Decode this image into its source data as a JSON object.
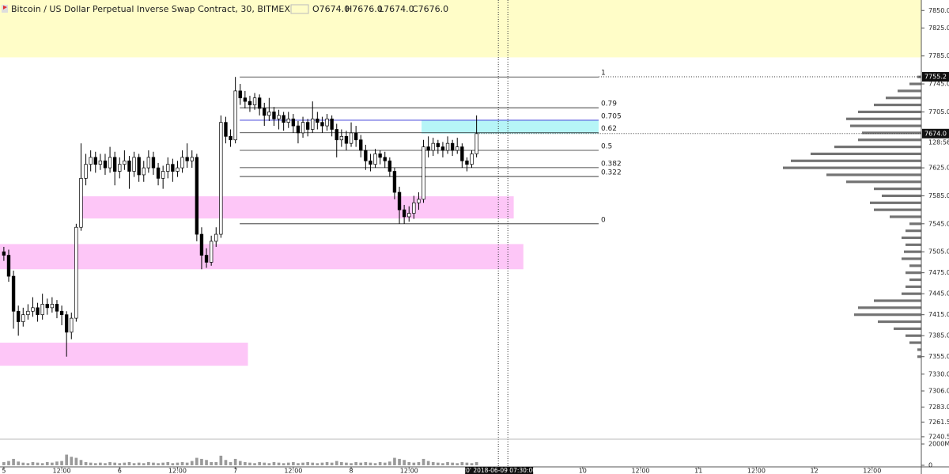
{
  "chart_data": {
    "type": "candlestick",
    "title": "Bitcoin / US Dollar Perpetual Inverse Swap Contract, 30, BITMEX",
    "legend_values": [
      "O7674.0",
      "H7676.0",
      "L7674.0",
      "C7676.0"
    ],
    "x": [
      0,
      1,
      2,
      3,
      4,
      5,
      6,
      7,
      8,
      9,
      10,
      11,
      12,
      13,
      14,
      15,
      16,
      17,
      18,
      19,
      20,
      21,
      22,
      23,
      24,
      25,
      26,
      27,
      28,
      29,
      30,
      31,
      32,
      33,
      34,
      35,
      36,
      37,
      38,
      39,
      40,
      41,
      42,
      43,
      44,
      45,
      46,
      47,
      48,
      49,
      50,
      51,
      52,
      53,
      54,
      55,
      56,
      57,
      58,
      59,
      60,
      61,
      62,
      63,
      64,
      65,
      66,
      67,
      68,
      69,
      70,
      71,
      72,
      73,
      74,
      75,
      76,
      77,
      78,
      79,
      80,
      81,
      82,
      83,
      84,
      85,
      86,
      87,
      88,
      89,
      90,
      91,
      92,
      93,
      94,
      95,
      96,
      97,
      98
    ],
    "open": [
      7505,
      7500,
      7470,
      7420,
      7405,
      7415,
      7420,
      7425,
      7415,
      7430,
      7425,
      7430,
      7420,
      7415,
      7390,
      7410,
      7540,
      7610,
      7630,
      7640,
      7630,
      7635,
      7625,
      7640,
      7620,
      7630,
      7635,
      7620,
      7640,
      7615,
      7625,
      7640,
      7625,
      7610,
      7620,
      7630,
      7620,
      7625,
      7640,
      7635,
      7640,
      7530,
      7500,
      7490,
      7520,
      7530,
      7690,
      7670,
      7665,
      7735,
      7725,
      7720,
      7715,
      7725,
      7710,
      7700,
      7705,
      7695,
      7700,
      7690,
      7695,
      7685,
      7675,
      7690,
      7680,
      7695,
      7690,
      7685,
      7695,
      7680,
      7665,
      7670,
      7660,
      7675,
      7665,
      7650,
      7635,
      7630,
      7645,
      7640,
      7635,
      7620,
      7590,
      7565,
      7555,
      7560,
      7575,
      7580,
      7655,
      7650,
      7660,
      7655,
      7650,
      7660,
      7650,
      7655,
      7635,
      7630,
      7645
    ],
    "high": [
      7512,
      7508,
      7478,
      7428,
      7425,
      7430,
      7440,
      7432,
      7445,
      7438,
      7440,
      7436,
      7428,
      7420,
      7418,
      7545,
      7660,
      7645,
      7650,
      7648,
      7645,
      7645,
      7655,
      7648,
      7640,
      7650,
      7642,
      7648,
      7645,
      7635,
      7650,
      7648,
      7632,
      7628,
      7640,
      7638,
      7635,
      7650,
      7660,
      7650,
      7645,
      7540,
      7510,
      7528,
      7540,
      7700,
      7698,
      7680,
      7755,
      7745,
      7735,
      7728,
      7732,
      7730,
      7718,
      7725,
      7712,
      7708,
      7705,
      7705,
      7702,
      7692,
      7698,
      7695,
      7720,
      7705,
      7698,
      7702,
      7700,
      7688,
      7680,
      7678,
      7690,
      7685,
      7672,
      7658,
      7645,
      7652,
      7650,
      7648,
      7640,
      7625,
      7598,
      7572,
      7570,
      7585,
      7590,
      7665,
      7670,
      7668,
      7665,
      7662,
      7670,
      7665,
      7668,
      7660,
      7640,
      7650,
      7700
    ],
    "low": [
      7492,
      7462,
      7395,
      7385,
      7398,
      7408,
      7412,
      7405,
      7408,
      7415,
      7418,
      7410,
      7400,
      7355,
      7380,
      7405,
      7535,
      7600,
      7620,
      7618,
      7622,
      7615,
      7618,
      7600,
      7610,
      7622,
      7595,
      7612,
      7605,
      7605,
      7618,
      7615,
      7600,
      7595,
      7610,
      7605,
      7612,
      7618,
      7625,
      7625,
      7520,
      7480,
      7482,
      7485,
      7512,
      7525,
      7660,
      7655,
      7660,
      7715,
      7710,
      7705,
      7708,
      7700,
      7685,
      7692,
      7685,
      7680,
      7678,
      7682,
      7675,
      7660,
      7668,
      7670,
      7675,
      7680,
      7675,
      7678,
      7670,
      7640,
      7655,
      7650,
      7655,
      7655,
      7640,
      7622,
      7620,
      7625,
      7630,
      7625,
      7612,
      7580,
      7545,
      7545,
      7548,
      7552,
      7565,
      7575,
      7640,
      7642,
      7645,
      7640,
      7645,
      7642,
      7645,
      7625,
      7620,
      7625,
      7640
    ],
    "close": [
      7500,
      7470,
      7420,
      7405,
      7415,
      7420,
      7425,
      7415,
      7430,
      7425,
      7430,
      7420,
      7415,
      7390,
      7410,
      7540,
      7610,
      7630,
      7640,
      7630,
      7635,
      7625,
      7640,
      7620,
      7630,
      7635,
      7620,
      7640,
      7615,
      7625,
      7640,
      7625,
      7610,
      7620,
      7630,
      7620,
      7625,
      7640,
      7635,
      7640,
      7530,
      7500,
      7490,
      7520,
      7530,
      7690,
      7670,
      7665,
      7735,
      7725,
      7720,
      7715,
      7725,
      7710,
      7700,
      7705,
      7695,
      7700,
      7690,
      7695,
      7685,
      7675,
      7690,
      7680,
      7695,
      7690,
      7685,
      7695,
      7680,
      7665,
      7670,
      7660,
      7675,
      7665,
      7650,
      7635,
      7630,
      7645,
      7640,
      7635,
      7620,
      7590,
      7565,
      7555,
      7560,
      7575,
      7580,
      7655,
      7650,
      7660,
      7655,
      7650,
      7660,
      7650,
      7655,
      7635,
      7630,
      7645,
      7674
    ],
    "volume": [
      300,
      400,
      600,
      350,
      250,
      200,
      300,
      250,
      200,
      300,
      250,
      350,
      400,
      1000,
      800,
      700,
      500,
      300,
      250,
      200,
      250,
      200,
      300,
      250,
      200,
      250,
      300,
      200,
      250,
      200,
      300,
      250,
      200,
      250,
      300,
      200,
      250,
      300,
      250,
      400,
      700,
      600,
      500,
      300,
      300,
      900,
      500,
      300,
      600,
      400,
      300,
      250,
      200,
      300,
      250,
      200,
      300,
      250,
      200,
      250,
      300,
      200,
      250,
      300,
      250,
      200,
      250,
      300,
      250,
      400,
      300,
      250,
      200,
      300,
      250,
      300,
      250,
      200,
      300,
      250,
      350,
      700,
      600,
      500,
      300,
      250,
      300,
      600,
      400,
      300,
      250,
      200,
      300,
      250,
      200,
      300,
      250,
      200,
      300
    ],
    "up_color": "#ffffff",
    "down_color": "#000000",
    "volume_color": "#9a9a9a",
    "xlim": [
      -0.8,
      190.2
    ],
    "ylim": [
      7237,
      7865
    ],
    "volume_ylim": [
      0,
      2300
    ],
    "volume_ticks": [
      {
        "value": 2000,
        "label": "2000M"
      },
      0
    ],
    "xticks": [
      {
        "value": 0,
        "label": "5"
      },
      {
        "value": 12,
        "label": "12:00"
      },
      {
        "value": 24,
        "label": "6"
      },
      {
        "value": 36,
        "label": "12:00"
      },
      {
        "value": 48,
        "label": "7"
      },
      {
        "value": 60,
        "label": "12:00"
      },
      {
        "value": 72,
        "label": "8"
      },
      {
        "value": 84,
        "label": "12:00"
      },
      {
        "value": 120,
        "label": "10"
      },
      {
        "value": 132,
        "label": "12:00"
      },
      {
        "value": 144,
        "label": "11"
      },
      {
        "value": 156,
        "label": "12:00"
      },
      {
        "value": 168,
        "label": "12"
      },
      {
        "value": 180,
        "label": "12:00"
      }
    ],
    "yticks": [
      {
        "value": 7850,
        "label": "7850.0"
      },
      {
        "value": 7825,
        "label": "7825.0"
      },
      {
        "value": 7785,
        "label": "7785.0"
      },
      {
        "value": 7745,
        "label": "7745.0"
      },
      {
        "value": 7705,
        "label": "7705.0"
      },
      {
        "value": 7625,
        "label": "7625.0"
      },
      {
        "value": 7585,
        "label": "7585.0"
      },
      {
        "value": 7545,
        "label": "7545.0"
      },
      {
        "value": 7505,
        "label": "7505.0"
      },
      {
        "value": 7475,
        "label": "7475.0"
      },
      {
        "value": 7445,
        "label": "7445.0"
      },
      {
        "value": 7415,
        "label": "7415.0"
      },
      {
        "value": 7385,
        "label": "7385.0"
      },
      {
        "value": 7355,
        "label": "7355.0"
      },
      {
        "value": 7330,
        "label": "7330.0"
      },
      {
        "value": 7306,
        "label": "7306.0"
      },
      {
        "value": 7283,
        "label": "7283.0"
      },
      {
        "value": 7261.5,
        "label": "7261.5"
      },
      {
        "value": 7240.5,
        "label": "7240.5"
      }
    ],
    "last_price": {
      "value": 7674,
      "label": "7674.0"
    },
    "high_price": {
      "value": 7755.2,
      "label": "7755.2"
    },
    "countdown": "128:56",
    "crosshair": {
      "x": 103.5,
      "label": "20' 2018-06-09 07:30:00"
    },
    "zones": [
      {
        "from": 7783,
        "to": 7865,
        "x": [
          -0.8,
          190.2
        ],
        "color": "#fffdc8"
      },
      {
        "from": 7552.6,
        "to": 7584.3,
        "x": [
          15.9,
          105.7
        ],
        "color": "#fdc6f7"
      },
      {
        "from": 7480,
        "to": 7516,
        "x": [
          -0.8,
          107.7
        ],
        "color": "#fdc6f7"
      },
      {
        "from": 7342,
        "to": 7375,
        "x": [
          -0.8,
          50.6
        ],
        "color": "#fdc6f7"
      },
      {
        "from": 7674,
        "to": 7693,
        "x": [
          86.6,
          123.3
        ],
        "color": "#b6f5f7"
      }
    ],
    "fib": {
      "high": 7755,
      "low": 7545,
      "x": [
        48.9,
        123.3
      ],
      "levels": [
        1,
        0.79,
        0.705,
        0.62,
        0.5,
        0.382,
        0.322,
        0
      ],
      "colors": [
        "#222222",
        "#222222",
        "#2a2ad4",
        "#222222",
        "#222222",
        "#222222",
        "#222222",
        "#222222"
      ]
    },
    "volume_profile": {
      "prices": [
        7755,
        7745,
        7735,
        7725,
        7715,
        7705,
        7695,
        7685,
        7675,
        7665,
        7655,
        7645,
        7635,
        7625,
        7615,
        7605,
        7595,
        7585,
        7575,
        7565,
        7555,
        7545,
        7535,
        7525,
        7515,
        7505,
        7495,
        7485,
        7475,
        7465,
        7455,
        7445,
        7435,
        7425,
        7415,
        7405,
        7395,
        7385,
        7375,
        7365,
        7355
      ],
      "values": [
        5,
        15,
        30,
        45,
        60,
        80,
        95,
        90,
        75,
        80,
        110,
        140,
        165,
        175,
        120,
        95,
        60,
        50,
        65,
        60,
        40,
        15,
        20,
        25,
        20,
        22,
        25,
        15,
        20,
        15,
        20,
        25,
        60,
        80,
        85,
        55,
        35,
        20,
        15,
        5,
        5
      ],
      "color": "#5a5a5a",
      "scale": 200
    }
  }
}
